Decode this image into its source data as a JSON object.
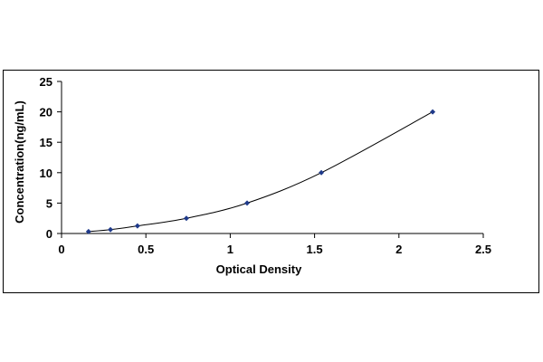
{
  "chart_data": {
    "type": "scatter",
    "title": "",
    "xlabel": "Optical Density",
    "ylabel": "Concentration(ng/mL)",
    "xlim": [
      0,
      2.5
    ],
    "ylim": [
      0,
      25
    ],
    "x_ticks": [
      0,
      0.5,
      1,
      1.5,
      2,
      2.5
    ],
    "x_tick_labels": [
      "0",
      "0.5",
      "1",
      "1.5",
      "2",
      "2.5"
    ],
    "y_ticks": [
      0,
      5,
      10,
      15,
      20,
      25
    ],
    "y_tick_labels": [
      "0",
      "5",
      "10",
      "15",
      "20",
      "25"
    ],
    "grid": false,
    "legend": "none",
    "trendline": "smooth",
    "series": [
      {
        "x": [
          0.16,
          0.29,
          0.45,
          0.74,
          1.1,
          1.54,
          2.2
        ],
        "y": [
          0.31,
          0.63,
          1.25,
          2.5,
          5,
          10,
          20
        ]
      }
    ],
    "colors": {
      "marker": "#1f3a8a",
      "line": "#000000",
      "axis": "#000000"
    }
  }
}
